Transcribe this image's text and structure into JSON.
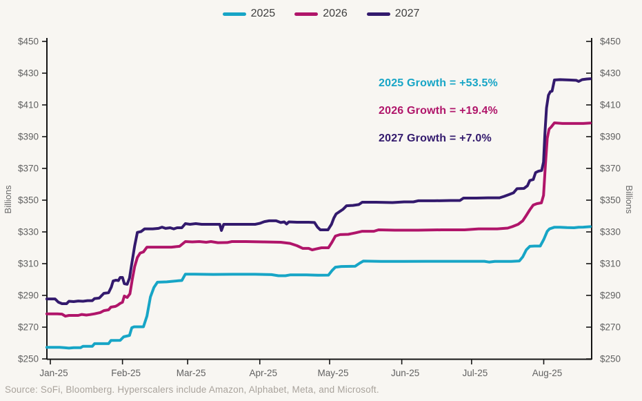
{
  "legend": {
    "items": [
      {
        "label": "2025",
        "color": "#17a5c6"
      },
      {
        "label": "2026",
        "color": "#b0156a"
      },
      {
        "label": "2027",
        "color": "#331a6d"
      }
    ]
  },
  "annotations": [
    {
      "text": "2025 Growth = +53.5%",
      "color": "#17a5c6"
    },
    {
      "text": "2026 Growth = +19.4%",
      "color": "#b0156a"
    },
    {
      "text": "2027 Growth = +7.0%",
      "color": "#331a6d"
    }
  ],
  "source_note": "Source: SoFi, Bloomberg. Hyperscalers include Amazon, Alphabet, Meta, and Microsoft.",
  "chart_data": {
    "type": "line",
    "title": "",
    "xlabel": "",
    "ylabel_left": "Billions",
    "ylabel_right": "Billions",
    "ylim": [
      250,
      450
    ],
    "grid": false,
    "legend_position": "top-center",
    "y_tick_values": [
      250,
      270,
      290,
      310,
      330,
      350,
      370,
      390,
      410,
      430,
      450
    ],
    "y_tick_labels": [
      "$250",
      "$270",
      "$290",
      "$310",
      "$330",
      "$350",
      "$370",
      "$390",
      "$410",
      "$430",
      "$450"
    ],
    "x_ticks": [
      {
        "day": 0,
        "label": "Jan-25"
      },
      {
        "day": 31,
        "label": "Feb-25"
      },
      {
        "day": 59,
        "label": "Mar-25"
      },
      {
        "day": 90,
        "label": "Apr-25"
      },
      {
        "day": 120,
        "label": "May-25"
      },
      {
        "day": 151,
        "label": "Jun-25"
      },
      {
        "day": 181,
        "label": "Jul-25"
      },
      {
        "day": 212,
        "label": "Aug-25"
      }
    ],
    "x_range_days": [
      -1.5,
      232.5
    ],
    "series": [
      {
        "name": "2025",
        "color": "#17a5c6",
        "points": [
          [
            -1.5,
            257.3
          ],
          [
            4,
            257.3
          ],
          [
            6,
            257.1
          ],
          [
            8,
            256.8
          ],
          [
            10,
            257.1
          ],
          [
            13,
            257.1
          ],
          [
            14,
            257.9
          ],
          [
            18,
            257.9
          ],
          [
            19,
            259.6
          ],
          [
            25,
            259.6
          ],
          [
            26,
            261.6
          ],
          [
            30,
            261.7
          ],
          [
            31.5,
            263.9
          ],
          [
            34,
            264.8
          ],
          [
            35,
            269.6
          ],
          [
            36,
            270.2
          ],
          [
            40,
            270.2
          ],
          [
            41.5,
            277
          ],
          [
            43,
            289
          ],
          [
            44.5,
            295
          ],
          [
            46,
            298.3
          ],
          [
            50,
            298.5
          ],
          [
            55,
            299.2
          ],
          [
            56.5,
            299.4
          ],
          [
            58,
            303.4
          ],
          [
            62,
            303.4
          ],
          [
            70,
            303.2
          ],
          [
            78,
            303.3
          ],
          [
            88,
            303.3
          ],
          [
            95,
            303.1
          ],
          [
            98,
            302.4
          ],
          [
            101,
            302.4
          ],
          [
            103,
            302.9
          ],
          [
            110,
            302.9
          ],
          [
            115,
            302.7
          ],
          [
            119.5,
            302.8
          ],
          [
            121,
            305.6
          ],
          [
            122.5,
            307.8
          ],
          [
            125,
            308.2
          ],
          [
            131,
            308.4
          ],
          [
            133,
            310.4
          ],
          [
            134.5,
            311.6
          ],
          [
            142,
            311.4
          ],
          [
            152,
            311.4
          ],
          [
            162,
            311.5
          ],
          [
            172,
            311.5
          ],
          [
            182,
            311.5
          ],
          [
            186.5,
            311.5
          ],
          [
            188.5,
            311
          ],
          [
            191,
            311.4
          ],
          [
            198,
            311.4
          ],
          [
            201.5,
            311.7
          ],
          [
            203,
            314.3
          ],
          [
            204.5,
            318.7
          ],
          [
            206,
            320.9
          ],
          [
            208,
            321.1
          ],
          [
            210.5,
            321.1
          ],
          [
            212,
            325.2
          ],
          [
            213.5,
            330.4
          ],
          [
            214.5,
            331.9
          ],
          [
            216.5,
            332.9
          ],
          [
            219,
            332.9
          ],
          [
            222,
            332.7
          ],
          [
            225,
            332.6
          ],
          [
            227,
            332.9
          ],
          [
            229,
            333
          ],
          [
            232,
            333.3
          ]
        ]
      },
      {
        "name": "2026",
        "color": "#b0156a",
        "points": [
          [
            -1.5,
            278.4
          ],
          [
            3,
            278.4
          ],
          [
            5,
            278.2
          ],
          [
            6.5,
            276.9
          ],
          [
            8,
            277.4
          ],
          [
            12,
            277.4
          ],
          [
            13.5,
            278
          ],
          [
            15.5,
            277.6
          ],
          [
            17,
            277.9
          ],
          [
            19,
            278.4
          ],
          [
            21.5,
            279.2
          ],
          [
            23,
            280.4
          ],
          [
            25,
            280.9
          ],
          [
            26,
            282.6
          ],
          [
            28,
            283.1
          ],
          [
            29,
            283.9
          ],
          [
            30,
            285
          ],
          [
            31,
            285.7
          ],
          [
            31.8,
            289.6
          ],
          [
            33,
            288.7
          ],
          [
            34.2,
            291
          ],
          [
            35.2,
            300
          ],
          [
            36.2,
            308
          ],
          [
            37.4,
            313.9
          ],
          [
            38.6,
            316.7
          ],
          [
            40,
            317.4
          ],
          [
            41.5,
            320.4
          ],
          [
            46,
            320.4
          ],
          [
            52,
            320.4
          ],
          [
            55.5,
            320.9
          ],
          [
            58,
            323.9
          ],
          [
            61,
            323.7
          ],
          [
            64,
            323.9
          ],
          [
            67,
            323.5
          ],
          [
            69,
            323.9
          ],
          [
            72,
            323.2
          ],
          [
            76,
            323.3
          ],
          [
            78,
            323.9
          ],
          [
            84,
            323.9
          ],
          [
            92,
            323.7
          ],
          [
            99,
            323.5
          ],
          [
            103,
            322.8
          ],
          [
            106,
            321.3
          ],
          [
            108.5,
            319.6
          ],
          [
            111,
            319.6
          ],
          [
            112.5,
            318.7
          ],
          [
            114,
            319.2
          ],
          [
            116.5,
            320
          ],
          [
            119.5,
            320
          ],
          [
            121,
            323.5
          ],
          [
            122.5,
            327.4
          ],
          [
            124.5,
            328.3
          ],
          [
            128,
            328.5
          ],
          [
            131,
            329.4
          ],
          [
            134,
            330.4
          ],
          [
            139,
            330.4
          ],
          [
            141,
            331.3
          ],
          [
            148,
            331.1
          ],
          [
            158,
            331.1
          ],
          [
            168,
            331.3
          ],
          [
            178,
            331.3
          ],
          [
            184,
            331.9
          ],
          [
            192,
            331.9
          ],
          [
            196.5,
            332.4
          ],
          [
            198.5,
            333.3
          ],
          [
            201,
            334.8
          ],
          [
            203,
            337
          ],
          [
            204.5,
            340.4
          ],
          [
            206,
            343.9
          ],
          [
            207.5,
            346.9
          ],
          [
            209,
            347.8
          ],
          [
            211,
            348.3
          ],
          [
            211.9,
            353
          ],
          [
            212.7,
            372
          ],
          [
            213.5,
            389
          ],
          [
            214.3,
            394.8
          ],
          [
            215.2,
            396.1
          ],
          [
            216.6,
            398.7
          ],
          [
            220,
            398.3
          ],
          [
            225,
            398.3
          ],
          [
            229,
            398.3
          ],
          [
            232,
            398.6
          ]
        ]
      },
      {
        "name": "2027",
        "color": "#331a6d",
        "points": [
          [
            -1.5,
            287.8
          ],
          [
            2,
            287.8
          ],
          [
            3.5,
            285.7
          ],
          [
            5,
            284.8
          ],
          [
            7,
            284.8
          ],
          [
            8,
            286.3
          ],
          [
            10,
            286.1
          ],
          [
            12,
            286.5
          ],
          [
            14,
            286.3
          ],
          [
            16,
            286.7
          ],
          [
            18,
            286.7
          ],
          [
            19,
            288
          ],
          [
            21,
            288.3
          ],
          [
            23,
            291.3
          ],
          [
            25,
            291.7
          ],
          [
            26.2,
            295.2
          ],
          [
            27,
            299.1
          ],
          [
            28.2,
            299.6
          ],
          [
            29.2,
            299.3
          ],
          [
            30,
            301.3
          ],
          [
            31,
            301.3
          ],
          [
            31.8,
            297.4
          ],
          [
            33,
            297
          ],
          [
            34,
            300.9
          ],
          [
            35,
            310
          ],
          [
            36.2,
            321
          ],
          [
            37.4,
            329.7
          ],
          [
            39,
            330.2
          ],
          [
            40.5,
            331.9
          ],
          [
            44,
            331.9
          ],
          [
            46.5,
            332.2
          ],
          [
            48,
            333
          ],
          [
            49.5,
            332.2
          ],
          [
            51.5,
            332.6
          ],
          [
            53,
            331.9
          ],
          [
            54.5,
            332.6
          ],
          [
            56.5,
            332.6
          ],
          [
            58,
            335.2
          ],
          [
            60,
            334.8
          ],
          [
            62.5,
            335.2
          ],
          [
            65,
            334.8
          ],
          [
            71.5,
            334.8
          ],
          [
            72.8,
            334.8
          ],
          [
            73.5,
            330.9
          ],
          [
            74.5,
            334.8
          ],
          [
            80,
            334.8
          ],
          [
            88,
            334.8
          ],
          [
            90,
            335.4
          ],
          [
            92,
            336.5
          ],
          [
            94,
            337
          ],
          [
            97,
            337
          ],
          [
            99,
            335.9
          ],
          [
            100.5,
            336.3
          ],
          [
            101.5,
            335
          ],
          [
            102.5,
            336.3
          ],
          [
            106,
            336.1
          ],
          [
            111,
            336.1
          ],
          [
            113.5,
            335.9
          ],
          [
            114.8,
            333
          ],
          [
            116,
            331.3
          ],
          [
            119.3,
            331.3
          ],
          [
            120.8,
            334.8
          ],
          [
            121.8,
            338.7
          ],
          [
            122.8,
            341.3
          ],
          [
            124.3,
            342.8
          ],
          [
            125.8,
            344.3
          ],
          [
            127.3,
            346.5
          ],
          [
            130,
            346.7
          ],
          [
            132.5,
            347.2
          ],
          [
            134,
            348.7
          ],
          [
            140,
            348.7
          ],
          [
            147,
            348.5
          ],
          [
            152,
            348.9
          ],
          [
            156,
            348.9
          ],
          [
            158,
            349.6
          ],
          [
            165,
            349.6
          ],
          [
            172,
            349.8
          ],
          [
            176,
            349.8
          ],
          [
            177.5,
            351.3
          ],
          [
            183,
            351.3
          ],
          [
            188,
            351.5
          ],
          [
            193,
            351.5
          ],
          [
            195,
            352.4
          ],
          [
            197,
            353.5
          ],
          [
            199,
            354.6
          ],
          [
            200.5,
            357.2
          ],
          [
            203.5,
            357.4
          ],
          [
            205,
            359.1
          ],
          [
            206,
            362.4
          ],
          [
            207.5,
            363
          ],
          [
            208.5,
            367.4
          ],
          [
            209.8,
            368.3
          ],
          [
            211.1,
            368.7
          ],
          [
            211.9,
            374
          ],
          [
            212.5,
            392
          ],
          [
            213.2,
            408
          ],
          [
            214,
            416.1
          ],
          [
            214.8,
            418.3
          ],
          [
            215.6,
            418.7
          ],
          [
            216.6,
            425.7
          ],
          [
            219,
            425.9
          ],
          [
            223,
            425.7
          ],
          [
            226,
            425.5
          ],
          [
            227,
            424.8
          ],
          [
            228.5,
            425.9
          ],
          [
            230.5,
            426.3
          ],
          [
            232,
            426.5
          ]
        ]
      }
    ]
  },
  "style": {
    "background": "#f8f6f2",
    "axis_color": "#141414",
    "tick_label_color": "#616161",
    "axis_title_color": "#6a6a6a"
  }
}
